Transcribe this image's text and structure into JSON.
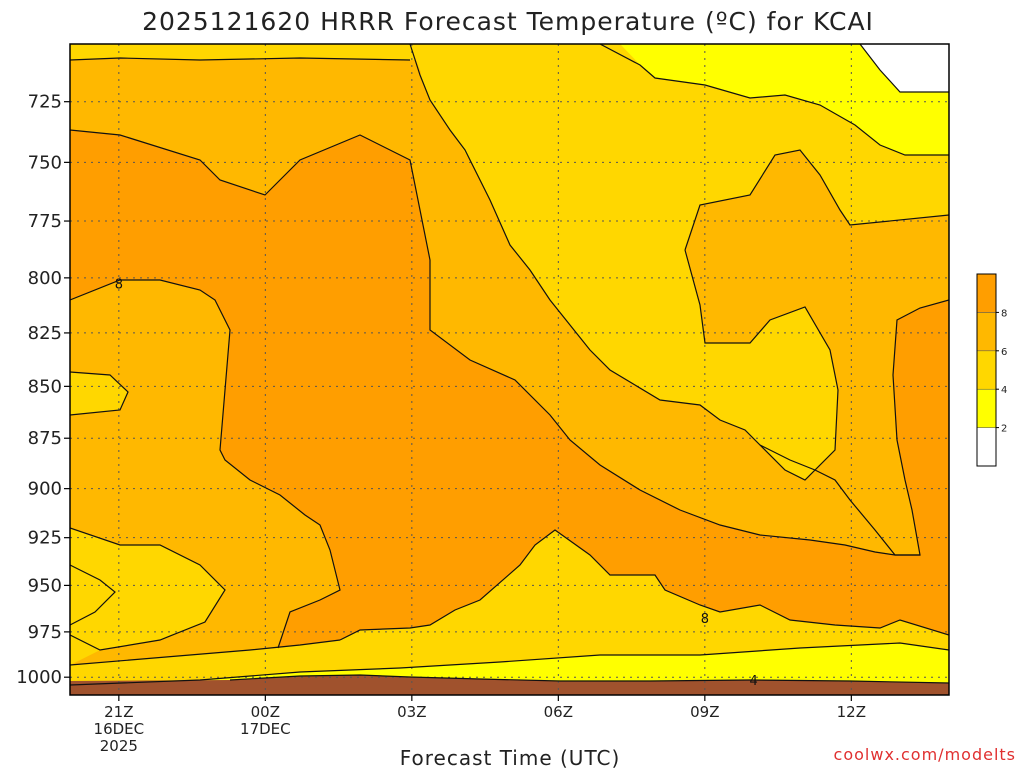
{
  "chart_data": {
    "type": "heatmap",
    "title": "2025121620 HRRR Forecast Temperature (ºC) for KCAI",
    "xlabel": "Forecast Time (UTC)",
    "ylabel": "",
    "x_ticks": [
      {
        "label": [
          "21Z",
          "16DEC",
          "2025"
        ],
        "hour": 21
      },
      {
        "label": [
          "00Z",
          "17DEC"
        ],
        "hour": 24
      },
      {
        "label": [
          "03Z"
        ],
        "hour": 27
      },
      {
        "label": [
          "06Z"
        ],
        "hour": 30
      },
      {
        "label": [
          "09Z"
        ],
        "hour": 33
      },
      {
        "label": [
          "12Z"
        ],
        "hour": 36
      }
    ],
    "xlim": [
      20,
      38
    ],
    "y_ticks": [
      725,
      750,
      775,
      800,
      825,
      850,
      875,
      900,
      925,
      950,
      975,
      1000
    ],
    "ylim": [
      1010,
      702
    ],
    "y_scale": "log-pressure",
    "grid": true,
    "colorbar": {
      "levels": [
        2,
        4,
        6,
        8
      ],
      "labels": [
        "2",
        "4",
        "6",
        "8"
      ],
      "colors": [
        "#ffffff",
        "#ffff00",
        "#ffd700",
        "#ffb800",
        "#ff9e00"
      ]
    },
    "contour_labels": [
      {
        "text": "8",
        "hour": 21.0,
        "pressure": 803
      },
      {
        "text": "8",
        "hour": 33.0,
        "pressure": 968
      },
      {
        "text": "4",
        "hour": 34.0,
        "pressure": 1002
      }
    ],
    "terrain_color": "#a0522d",
    "credit": "coolwx.com/modelts"
  }
}
